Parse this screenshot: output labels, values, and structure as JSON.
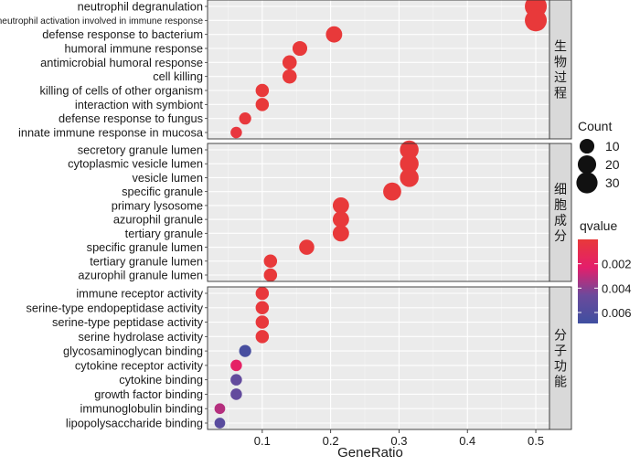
{
  "chart_data": {
    "type": "scatter",
    "xlabel": "GeneRatio",
    "x_ticks": [
      0.1,
      0.2,
      0.3,
      0.4,
      0.5
    ],
    "xlim": [
      0.02,
      0.52
    ],
    "size_legend": {
      "title": "Count",
      "values": [
        10,
        20,
        30
      ]
    },
    "color_legend": {
      "title": "qvalue",
      "ticks": [
        0.002,
        0.004,
        0.006
      ],
      "range": [
        0.0,
        0.0069
      ],
      "colors": [
        "#e8393a",
        "#e41e6b",
        "#6b4a9c",
        "#3f4fa0"
      ]
    },
    "panels": [
      {
        "label": "生物过程",
        "points": [
          {
            "term": "neutrophil degranulation",
            "x": 0.5,
            "count": 33,
            "qvalue": 0.0
          },
          {
            "term": "neutrophil activation involved in immune response",
            "x": 0.5,
            "count": 33,
            "qvalue": 0.0
          },
          {
            "term": "defense response to bacterium",
            "x": 0.205,
            "count": 14,
            "qvalue": 0.0
          },
          {
            "term": "humoral immune response",
            "x": 0.155,
            "count": 10,
            "qvalue": 0.0
          },
          {
            "term": "antimicrobial humoral response",
            "x": 0.14,
            "count": 9,
            "qvalue": 0.0
          },
          {
            "term": "cell killing",
            "x": 0.14,
            "count": 9,
            "qvalue": 0.0
          },
          {
            "term": "killing of cells of other organism",
            "x": 0.1,
            "count": 7,
            "qvalue": 0.0
          },
          {
            "term": "interaction with symbiont",
            "x": 0.1,
            "count": 7,
            "qvalue": 0.0
          },
          {
            "term": "defense response to fungus",
            "x": 0.075,
            "count": 5,
            "qvalue": 0.0001
          },
          {
            "term": "innate immune response in mucosa",
            "x": 0.062,
            "count": 4,
            "qvalue": 0.0002
          }
        ]
      },
      {
        "label": "细胞成分",
        "points": [
          {
            "term": "secretory granule lumen",
            "x": 0.315,
            "count": 21,
            "qvalue": 0.0
          },
          {
            "term": "cytoplasmic vesicle lumen",
            "x": 0.315,
            "count": 21,
            "qvalue": 0.0
          },
          {
            "term": "vesicle lumen",
            "x": 0.315,
            "count": 21,
            "qvalue": 0.0
          },
          {
            "term": "specific granule",
            "x": 0.29,
            "count": 19,
            "qvalue": 0.0
          },
          {
            "term": "primary lysosome",
            "x": 0.215,
            "count": 14,
            "qvalue": 0.0
          },
          {
            "term": "azurophil granule",
            "x": 0.215,
            "count": 14,
            "qvalue": 0.0
          },
          {
            "term": "tertiary granule",
            "x": 0.215,
            "count": 14,
            "qvalue": 0.0
          },
          {
            "term": "specific granule lumen",
            "x": 0.165,
            "count": 11,
            "qvalue": 0.0
          },
          {
            "term": "tertiary granule lumen",
            "x": 0.112,
            "count": 7,
            "qvalue": 0.0
          },
          {
            "term": "azurophil granule lumen",
            "x": 0.112,
            "count": 7,
            "qvalue": 0.0
          }
        ]
      },
      {
        "label": "分子功能",
        "points": [
          {
            "term": "immune receptor activity",
            "x": 0.1,
            "count": 7,
            "qvalue": 0.0001
          },
          {
            "term": "serine-type endopeptidase activity",
            "x": 0.1,
            "count": 7,
            "qvalue": 0.0001
          },
          {
            "term": "serine-type peptidase activity",
            "x": 0.1,
            "count": 7,
            "qvalue": 0.0001
          },
          {
            "term": "serine hydrolase activity",
            "x": 0.1,
            "count": 7,
            "qvalue": 0.0001
          },
          {
            "term": "glycosaminoglycan binding",
            "x": 0.075,
            "count": 5,
            "qvalue": 0.0065
          },
          {
            "term": "cytokine receptor activity",
            "x": 0.062,
            "count": 4,
            "qvalue": 0.002
          },
          {
            "term": "cytokine binding",
            "x": 0.062,
            "count": 4,
            "qvalue": 0.005
          },
          {
            "term": "growth factor binding",
            "x": 0.062,
            "count": 4,
            "qvalue": 0.005
          },
          {
            "term": "immunoglobulin binding",
            "x": 0.038,
            "count": 3,
            "qvalue": 0.0032
          },
          {
            "term": "lipopolysaccharide binding",
            "x": 0.038,
            "count": 3,
            "qvalue": 0.0055
          }
        ]
      }
    ]
  }
}
